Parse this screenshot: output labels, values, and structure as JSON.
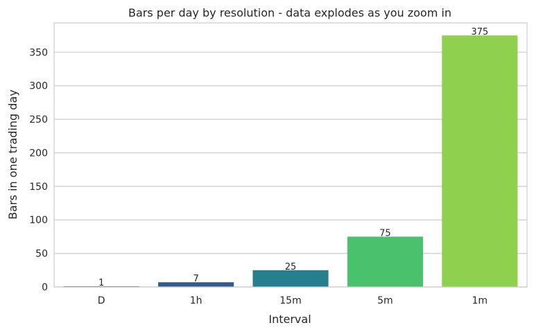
{
  "chart_data": {
    "type": "bar",
    "title": "Bars per day by resolution - data explodes as you zoom in",
    "xlabel": "Interval",
    "ylabel": "Bars in one trading day",
    "categories": [
      "D",
      "1h",
      "15m",
      "5m",
      "1m"
    ],
    "values": [
      1,
      7,
      25,
      75,
      375
    ],
    "value_labels": [
      "1",
      "7",
      "25",
      "75",
      "375"
    ],
    "colors": [
      "#46327e",
      "#365c8d",
      "#277f8e",
      "#4ac16d",
      "#8fd14f"
    ],
    "ylim": [
      0,
      393.75
    ],
    "yticks": [
      0,
      50,
      100,
      150,
      200,
      250,
      300,
      350
    ],
    "grid": true,
    "grid_axis": "y"
  }
}
